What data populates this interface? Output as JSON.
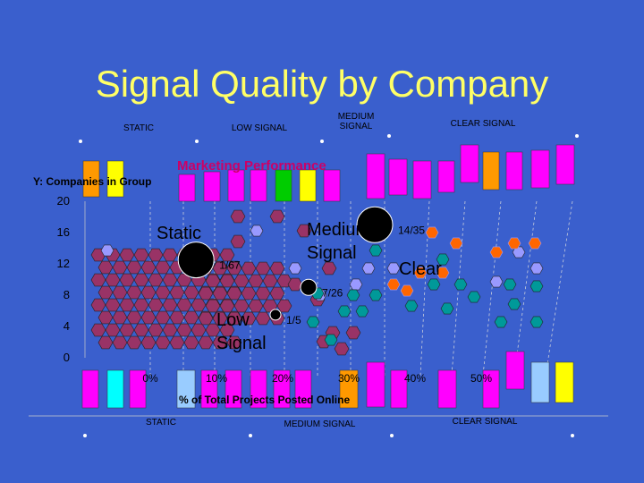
{
  "slide": {
    "title": "Signal Quality by Company",
    "top_headers": [
      "STATIC",
      "LOW SIGNAL",
      "MEDIUM\nSIGNAL",
      "CLEAR SIGNAL"
    ],
    "bottom_headers": [
      "STATIC",
      "MEDIUM SIGNAL",
      "CLEAR SIGNAL"
    ],
    "center_label": "Marketing Performance"
  },
  "chart_data": {
    "type": "scatter",
    "title": "",
    "ylabel": "Y: Companies in Group",
    "xlabel": "% of Total Projects Posted Online",
    "y_ticks": [
      "20",
      "16",
      "12",
      "8",
      "4",
      "0"
    ],
    "x_ticks": [
      "0%",
      "10%",
      "20%",
      "30%",
      "40%",
      "50%"
    ],
    "ylim": [
      0,
      20
    ],
    "xlim": [
      0,
      50
    ],
    "regions": [
      "Static",
      "Low\nSignal",
      "Medium\nSignal",
      "Clear"
    ],
    "points": [
      {
        "label": "1/67",
        "x": 8,
        "y": 12.5,
        "size": "large"
      },
      {
        "label": "1/5",
        "x": 20,
        "y": 5.5,
        "size": "small"
      },
      {
        "label": "7/26",
        "x": 25,
        "y": 9,
        "size": "medium"
      },
      {
        "label": "14/35",
        "x": 35,
        "y": 17,
        "size": "large"
      }
    ]
  },
  "colors": {
    "background": "#3a5fcd",
    "title": "#ffff66",
    "hex_static": "#993366",
    "hex_medium": "#009999",
    "hex_clear": "#ff6600",
    "hex_clear_light": "#9999ff",
    "bar_magenta": "#ff00ff",
    "bar_orange": "#ff9900",
    "bar_yellow": "#ffff00",
    "bar_green": "#00cc00",
    "bar_cyan": "#00ffff",
    "bar_lightblue": "#99ccff"
  }
}
